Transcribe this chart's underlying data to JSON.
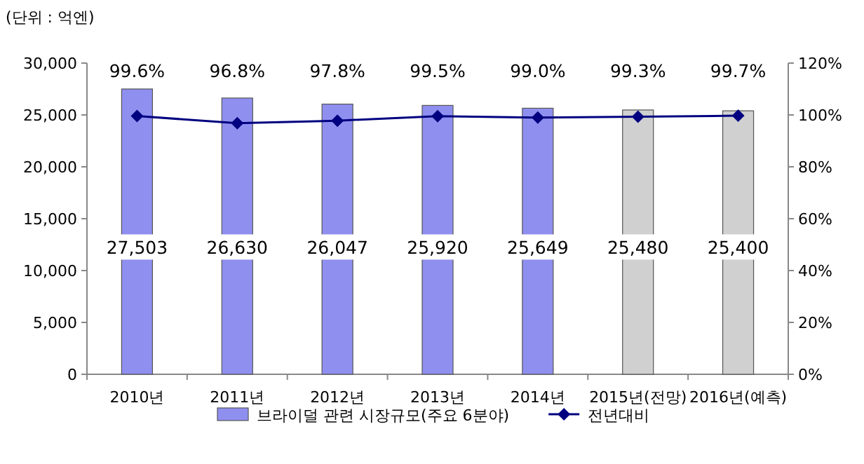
{
  "chart_data": {
    "type": "bar",
    "annotations": [
      "(단위 : 억엔)"
    ],
    "categories": [
      "2010년",
      "2011년",
      "2012년",
      "2013년",
      "2014년",
      "2015년(전망)",
      "2016년(예측)"
    ],
    "series": [
      {
        "name": "브라이덜 관련 시장규모(주요 6분야)",
        "colors": [
          "#8f8ff0",
          "#8f8ff0",
          "#8f8ff0",
          "#8f8ff0",
          "#8f8ff0",
          "#d0d0d0",
          "#d0d0d0"
        ],
        "values": [
          27503,
          26630,
          26047,
          25920,
          25649,
          25480,
          25400
        ],
        "value_labels": [
          "27,503",
          "26,630",
          "26,047",
          "25,920",
          "25,649",
          "25,480",
          "25,400"
        ]
      },
      {
        "name": "전년대비",
        "type": "line",
        "axis": "y2",
        "color": "#000080",
        "marker": "diamond",
        "values": [
          99.6,
          96.8,
          97.8,
          99.5,
          99.0,
          99.3,
          99.7
        ],
        "value_labels": [
          "99.6%",
          "96.8%",
          "97.8%",
          "99.5%",
          "99.0%",
          "99.3%",
          "99.7%"
        ]
      }
    ],
    "ylim": [
      0,
      30000
    ],
    "yticks": [
      0,
      {
        "value": 5000,
        "label": "5,000"
      },
      {
        "value": 10000,
        "label": "10,000"
      },
      {
        "value": 15000,
        "label": "15,000"
      },
      {
        "value": 20000,
        "label": "20,000"
      },
      {
        "value": 25000,
        "label": "25,000"
      },
      {
        "value": 30000,
        "label": "30,000"
      }
    ],
    "y2lim": [
      0,
      120
    ],
    "y2ticks": [
      {
        "value": 0,
        "label": "0%"
      },
      {
        "value": 20,
        "label": "20%"
      },
      {
        "value": 40,
        "label": "40%"
      },
      {
        "value": 60,
        "label": "60%"
      },
      {
        "value": 80,
        "label": "80%"
      },
      {
        "value": 100,
        "label": "100%"
      },
      {
        "value": 120,
        "label": "120%"
      }
    ],
    "legend": "bottom"
  }
}
